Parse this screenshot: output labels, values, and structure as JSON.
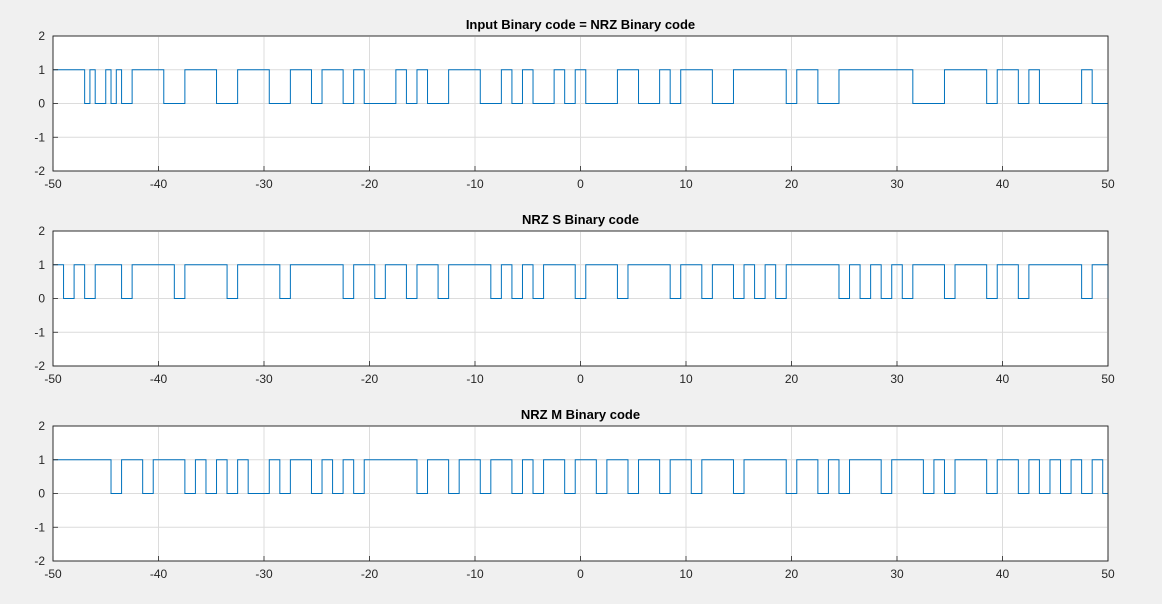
{
  "window": {
    "background": "#f0f0f0"
  },
  "chart_data": [
    {
      "type": "line",
      "step": true,
      "title": "Input Binary code = NRZ Binary code",
      "xlim": [
        -50,
        50
      ],
      "ylim": [
        -2,
        2
      ],
      "xticks": [
        -50,
        -40,
        -30,
        -20,
        -10,
        0,
        10,
        20,
        30,
        40,
        50
      ],
      "yticks": [
        -2,
        -1,
        0,
        1,
        2
      ],
      "grid": true,
      "color": "#0072bd",
      "x": [
        -50,
        -47,
        -46.5,
        -46,
        -45,
        -44.5,
        -44,
        -43.5,
        -42.5,
        -39.5,
        -37.5,
        -34.5,
        -32.5,
        -29.5,
        -27.5,
        -25.5,
        -24.5,
        -22.5,
        -21.5,
        -20.5,
        -17.5,
        -16.5,
        -15.5,
        -14.5,
        -12.5,
        -9.5,
        -7.5,
        -6.5,
        -5.5,
        -4.5,
        -2.5,
        -1.5,
        -0.5,
        0.5,
        3.5,
        5.5,
        7.5,
        8.5,
        9.5,
        12.5,
        14.5,
        19.5,
        20.5,
        22.5,
        24.5,
        31.5,
        34.5,
        38.5,
        39.5,
        41.5,
        42.5,
        43.5,
        47.5,
        48.5,
        50
      ],
      "y": [
        1,
        0,
        1,
        0,
        1,
        0,
        1,
        0,
        1,
        0,
        1,
        0,
        1,
        0,
        1,
        0,
        1,
        0,
        1,
        0,
        1,
        0,
        1,
        0,
        1,
        0,
        1,
        0,
        1,
        0,
        1,
        0,
        1,
        0,
        1,
        0,
        1,
        0,
        1,
        0,
        1,
        0,
        1,
        0,
        1,
        0,
        1,
        0,
        1,
        0,
        1,
        0,
        1,
        0,
        0
      ]
    },
    {
      "type": "line",
      "step": true,
      "title": "NRZ S Binary code",
      "xlim": [
        -50,
        50
      ],
      "ylim": [
        -2,
        2
      ],
      "xticks": [
        -50,
        -40,
        -30,
        -20,
        -10,
        0,
        10,
        20,
        30,
        40,
        50
      ],
      "yticks": [
        -2,
        -1,
        0,
        1,
        2
      ],
      "grid": true,
      "color": "#0072bd",
      "x": [
        -50,
        -49,
        -48,
        -47,
        -46,
        -43.5,
        -42.5,
        -38.5,
        -37.5,
        -33.5,
        -32.5,
        -28.5,
        -27.5,
        -22.5,
        -21.5,
        -19.5,
        -18.5,
        -16.5,
        -15.5,
        -13.5,
        -12.5,
        -8.5,
        -7.5,
        -6.5,
        -5.5,
        -4.5,
        -3.5,
        -0.5,
        0.5,
        3.5,
        4.5,
        8.5,
        9.5,
        11.5,
        12.5,
        14.5,
        15.5,
        16.5,
        17.5,
        18.5,
        19.5,
        24.5,
        25.5,
        26.5,
        27.5,
        28.5,
        29.5,
        30.5,
        31.5,
        34.5,
        35.5,
        38.5,
        39.5,
        41.5,
        42.5,
        47.5,
        48.5,
        50
      ],
      "y": [
        1,
        0,
        1,
        0,
        1,
        0,
        1,
        0,
        1,
        0,
        1,
        0,
        1,
        0,
        1,
        0,
        1,
        0,
        1,
        0,
        1,
        0,
        1,
        0,
        1,
        0,
        1,
        0,
        1,
        0,
        1,
        0,
        1,
        0,
        1,
        0,
        1,
        0,
        1,
        0,
        1,
        0,
        1,
        0,
        1,
        0,
        1,
        0,
        1,
        0,
        1,
        0,
        1,
        0,
        1,
        0,
        1,
        0
      ]
    },
    {
      "type": "line",
      "step": true,
      "title": "NRZ M Binary code",
      "xlim": [
        -50,
        50
      ],
      "ylim": [
        -2,
        2
      ],
      "xticks": [
        -50,
        -40,
        -30,
        -20,
        -10,
        0,
        10,
        20,
        30,
        40,
        50
      ],
      "yticks": [
        -2,
        -1,
        0,
        1,
        2
      ],
      "grid": true,
      "color": "#0072bd",
      "x": [
        -50,
        -44.5,
        -43.5,
        -41.5,
        -40.5,
        -37.5,
        -36.5,
        -35.5,
        -34.5,
        -33.5,
        -32.5,
        -31.5,
        -29.5,
        -28.5,
        -27.5,
        -25.5,
        -24.5,
        -23.5,
        -22.5,
        -21.5,
        -20.5,
        -15.5,
        -14.5,
        -12.5,
        -11.5,
        -9.5,
        -8.5,
        -6.5,
        -5.5,
        -4.5,
        -3.5,
        -1.5,
        -0.5,
        1.5,
        2.5,
        4.5,
        5.5,
        7.5,
        8.5,
        10.5,
        11.5,
        14.5,
        15.5,
        19.5,
        20.5,
        22.5,
        23.5,
        24.5,
        25.5,
        28.5,
        29.5,
        32.5,
        33.5,
        34.5,
        35.5,
        38.5,
        39.5,
        41.5,
        42.5,
        43.5,
        44.5,
        45.5,
        46.5,
        47.5,
        48.5,
        49.5,
        50
      ],
      "y": [
        1,
        0,
        1,
        0,
        1,
        0,
        1,
        0,
        1,
        0,
        1,
        0,
        1,
        0,
        1,
        0,
        1,
        0,
        1,
        0,
        1,
        0,
        1,
        0,
        1,
        0,
        1,
        0,
        1,
        0,
        1,
        0,
        1,
        0,
        1,
        0,
        1,
        0,
        1,
        0,
        1,
        0,
        1,
        0,
        1,
        0,
        1,
        0,
        1,
        0,
        1,
        0,
        1,
        0,
        1,
        0,
        1,
        0,
        1,
        0,
        1,
        0,
        1,
        0,
        1,
        0,
        0
      ]
    }
  ]
}
